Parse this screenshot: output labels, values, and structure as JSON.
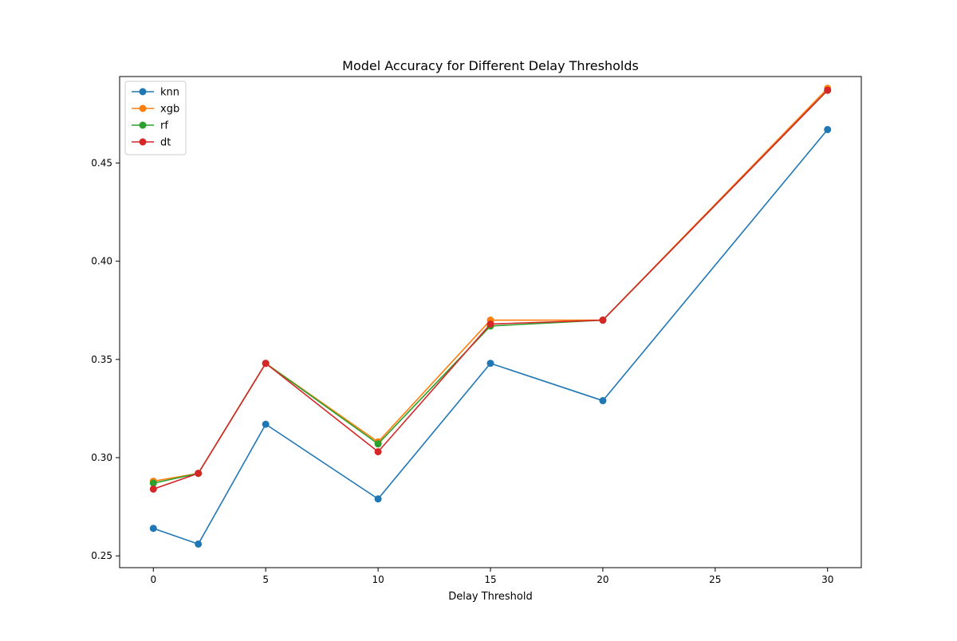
{
  "chart_data": {
    "type": "line",
    "title": "Model Accuracy for Different Delay Thresholds",
    "xlabel": "Delay Threshold",
    "ylabel": "",
    "x": [
      0,
      2,
      5,
      10,
      15,
      20,
      30
    ],
    "xlim": [
      -1.5,
      31.5
    ],
    "ylim": [
      0.244,
      0.494
    ],
    "xticks": [
      0,
      5,
      10,
      15,
      20,
      25,
      30
    ],
    "yticks": [
      0.25,
      0.3,
      0.35,
      0.4,
      0.45
    ],
    "ytick_labels": [
      "0.25",
      "0.30",
      "0.35",
      "0.40",
      "0.45"
    ],
    "grid": false,
    "legend_position": "top-left",
    "series": [
      {
        "name": "knn",
        "color": "#1f77b4",
        "values": [
          0.264,
          0.256,
          0.317,
          0.279,
          0.348,
          0.329,
          0.467
        ]
      },
      {
        "name": "xgb",
        "color": "#ff7f0e",
        "values": [
          0.288,
          0.292,
          0.348,
          0.308,
          0.37,
          0.37,
          0.488
        ]
      },
      {
        "name": "rf",
        "color": "#2ca02c",
        "values": [
          0.287,
          0.292,
          0.348,
          0.307,
          0.367,
          0.37,
          0.487
        ]
      },
      {
        "name": "dt",
        "color": "#d62728",
        "values": [
          0.284,
          0.292,
          0.348,
          0.303,
          0.368,
          0.37,
          0.487
        ]
      }
    ]
  }
}
